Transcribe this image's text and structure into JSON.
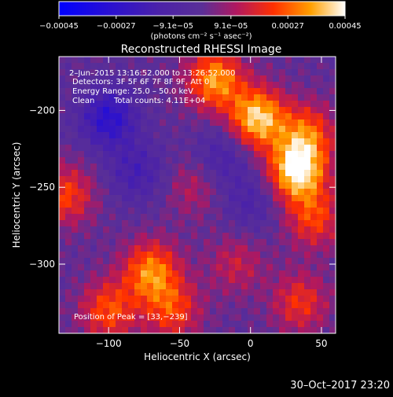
{
  "chart_data": {
    "type": "heatmap",
    "title": "Reconstructed RHESSI Image",
    "xlabel": "Heliocentric X (arcsec)",
    "ylabel": "Heliocentric Y (arcsec)",
    "xlim": [
      -135,
      60
    ],
    "ylim": [
      -345,
      -165
    ],
    "x_ticks": [
      -100,
      -50,
      0,
      50
    ],
    "x_tick_labels": [
      "−100",
      "−50",
      "0",
      "50"
    ],
    "y_ticks": [
      -200,
      -250,
      -300
    ],
    "y_tick_labels": [
      "−200",
      "−250",
      "−300"
    ],
    "colorbar": {
      "range": [
        -0.00045,
        0.00045
      ],
      "tick_values": [
        -0.00045,
        -0.00027,
        -9.1e-05,
        9.1e-05,
        0.00027,
        0.00045
      ],
      "tick_labels": [
        "−0.00045",
        "−0.00027",
        "−9.1e−05",
        "9.1e−05",
        "0.00027",
        "0.00045"
      ],
      "units_label": "(photons cm⁻² s⁻¹ asec⁻²)"
    },
    "annotations": {
      "time_range": "2–Jun–2015 13:16:52.000 to 13:26:52.000",
      "detectors": "Detectors: 3F 5F 6F 7F 8F 9F, Att 0",
      "energy_range": "Energy Range: 25.0 – 50.0 keV",
      "algorithm": "Clean",
      "total_counts": "Total counts: 4.11E+04",
      "peak": "Position of Peak = [33,−239]"
    },
    "footer_timestamp": "30–Oct–2017 23:20",
    "colors": {
      "background": "#000000",
      "negative_low": "#0000ff",
      "neutral": "#5a2f97",
      "positive_mid": "#ff4000",
      "positive_high": "#ffffff"
    },
    "sources": [
      {
        "x": 33,
        "y": -239,
        "amp": 1.0
      },
      {
        "x": 5,
        "y": -205,
        "amp": 0.9
      },
      {
        "x": -25,
        "y": -180,
        "amp": 0.75
      },
      {
        "x": 40,
        "y": -215,
        "amp": 0.55
      },
      {
        "x": 45,
        "y": -270,
        "amp": 0.5
      },
      {
        "x": -70,
        "y": -305,
        "amp": 0.7
      },
      {
        "x": -100,
        "y": -330,
        "amp": 0.55
      },
      {
        "x": -55,
        "y": -330,
        "amp": 0.5
      },
      {
        "x": -130,
        "y": -255,
        "amp": 0.5
      },
      {
        "x": 35,
        "y": -325,
        "amp": 0.45
      },
      {
        "x": -10,
        "y": -300,
        "amp": 0.3
      },
      {
        "x": -40,
        "y": -250,
        "amp": 0.25
      },
      {
        "x": -100,
        "y": -205,
        "amp": -0.6
      },
      {
        "x": -80,
        "y": -240,
        "amp": -0.35
      },
      {
        "x": -20,
        "y": -230,
        "amp": -0.3
      },
      {
        "x": 0,
        "y": -260,
        "amp": -0.25
      }
    ]
  }
}
